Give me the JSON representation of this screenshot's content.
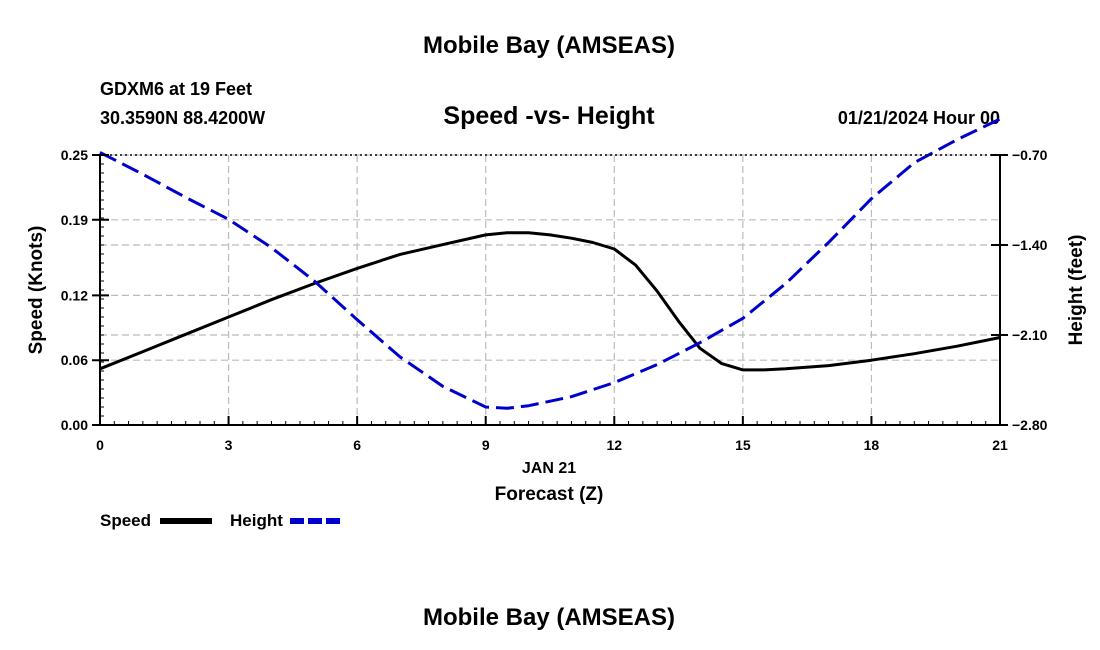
{
  "header": {
    "top_title": "Mobile Bay (AMSEAS)",
    "station": "GDXM6 at 19 Feet",
    "coords": "30.3590N  88.4200W",
    "plot_title": "Speed -vs- Height",
    "timestamp": "01/21/2024 Hour 00",
    "bottom_title": "Mobile Bay (AMSEAS)"
  },
  "chart_data": {
    "type": "line",
    "title": "Speed -vs- Height",
    "xlabel": "Forecast (Z)",
    "xdate_label": "JAN 21",
    "ylabel_left": "Speed (Knots)",
    "ylabel_right": "Height (feet)",
    "x_ticks": [
      0,
      3,
      6,
      9,
      12,
      15,
      18,
      21
    ],
    "xlim": [
      0,
      21
    ],
    "y_left": {
      "lim": [
        0,
        0.25
      ],
      "ticks": [
        0.0,
        0.06,
        0.12,
        0.19,
        0.25
      ],
      "tick_labels": [
        "0.00",
        "0.06",
        "0.12",
        "0.19",
        "0.25"
      ]
    },
    "y_right": {
      "lim": [
        -2.8,
        -0.7
      ],
      "ticks": [
        -0.7,
        -1.4,
        -2.1,
        -2.8
      ],
      "tick_labels": [
        "−0.70",
        "−1.40",
        "−2.10",
        "−2.80"
      ]
    },
    "grid": true,
    "series": [
      {
        "name": "Speed",
        "axis": "left",
        "color": "#000000",
        "style": "solid",
        "x": [
          0,
          1,
          2,
          3,
          4,
          5,
          6,
          7,
          8,
          9,
          9.5,
          10,
          10.5,
          11,
          11.5,
          12,
          12.5,
          13,
          13.5,
          14,
          14.5,
          15,
          15.5,
          16,
          17,
          18,
          19,
          20,
          21
        ],
        "values": [
          0.052,
          0.068,
          0.084,
          0.1,
          0.116,
          0.131,
          0.145,
          0.158,
          0.167,
          0.176,
          0.178,
          0.178,
          0.176,
          0.173,
          0.169,
          0.163,
          0.148,
          0.124,
          0.096,
          0.071,
          0.057,
          0.051,
          0.051,
          0.052,
          0.055,
          0.06,
          0.066,
          0.073,
          0.081
        ]
      },
      {
        "name": "Height",
        "axis": "right",
        "color": "#0000cc",
        "style": "dashed",
        "x": [
          0,
          1,
          2,
          3,
          4,
          5,
          6,
          7,
          8,
          9,
          9.5,
          10,
          11,
          12,
          13,
          14,
          15,
          16,
          17,
          18,
          19,
          20,
          21
        ],
        "values": [
          -0.68,
          -0.85,
          -1.03,
          -1.2,
          -1.42,
          -1.68,
          -1.98,
          -2.27,
          -2.5,
          -2.66,
          -2.67,
          -2.65,
          -2.58,
          -2.47,
          -2.33,
          -2.16,
          -1.97,
          -1.7,
          -1.38,
          -1.04,
          -0.76,
          -0.58,
          -0.42
        ]
      }
    ],
    "legend": {
      "placement": "bottom-left",
      "entries": [
        "Speed",
        "Height"
      ]
    }
  }
}
